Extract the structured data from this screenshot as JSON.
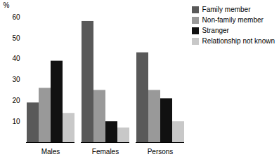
{
  "chart_data": {
    "type": "bar",
    "categories": [
      "Males",
      "Females",
      "Persons"
    ],
    "series": [
      {
        "name": "Family member",
        "color": "#595959",
        "values": [
          19,
          58,
          43
        ]
      },
      {
        "name": "Non-family member",
        "color": "#999999",
        "values": [
          26,
          25,
          25
        ]
      },
      {
        "name": "Stranger",
        "color": "#111111",
        "values": [
          39,
          10,
          21
        ]
      },
      {
        "name": "Relationship not known",
        "color": "#c8c8c8",
        "values": [
          14,
          7,
          10
        ]
      }
    ],
    "ylabel": "%",
    "ylim": [
      0,
      60
    ],
    "yticks": [
      10,
      20,
      30,
      40,
      50,
      60
    ],
    "legend": "upper right"
  }
}
